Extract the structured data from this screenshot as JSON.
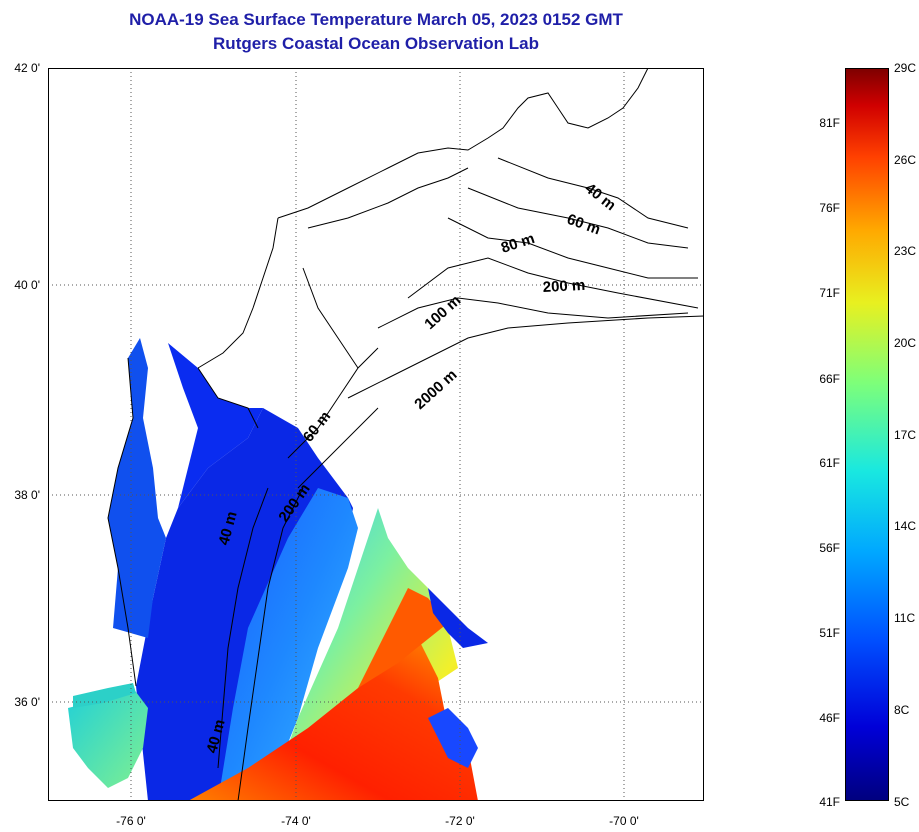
{
  "title": {
    "line1": "NOAA-19 Sea Surface Temperature March 05, 2023 0152 GMT",
    "line2": "Rutgers Coastal Ocean Observation Lab"
  },
  "axes": {
    "lat_labels": [
      "42 0'",
      "40 0'",
      "38 0'",
      "36 0'"
    ],
    "lat_values": [
      42,
      40,
      38,
      36
    ],
    "lon_labels": [
      "-76 0'",
      "-74 0'",
      "-72 0'",
      "-70 0'"
    ],
    "lon_values": [
      -76,
      -74,
      -72,
      -70
    ],
    "lat_range": [
      35.0,
      42.0
    ],
    "lon_range": [
      -77.0,
      -69.0
    ],
    "grid": "dotted"
  },
  "contour_labels": [
    "40 m",
    "60 m",
    "80 m",
    "200 m",
    "100 m",
    "2000 m",
    "60 m",
    "200 m",
    "40 m",
    "40 m"
  ],
  "colorbar": {
    "fahrenheit": [
      "81F",
      "76F",
      "71F",
      "66F",
      "61F",
      "56F",
      "51F",
      "46F",
      "41F"
    ],
    "celsius": [
      "29C",
      "26C",
      "23C",
      "20C",
      "17C",
      "14C",
      "11C",
      "8C",
      "5C"
    ],
    "range_c": [
      5,
      29
    ],
    "colormap": "jet"
  },
  "colors": {
    "title": "#1f1fa8",
    "warm_water": "#ff2a00",
    "cold_water": "#0a28e6",
    "shelf_water": "#2a9cff"
  }
}
